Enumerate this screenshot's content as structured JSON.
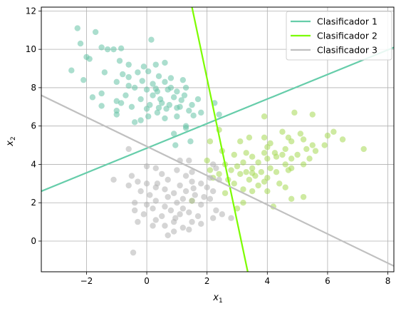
{
  "chart_data": {
    "type": "scatter",
    "xlabel": "x",
    "xlabel_sub": "1",
    "ylabel": "x",
    "ylabel_sub": "2",
    "xlim": [
      -3.5,
      8.2
    ],
    "ylim": [
      -1.6,
      12.2
    ],
    "grid": true,
    "legend_position": "top-right",
    "x_ticks": [
      -2,
      0,
      2,
      4,
      6,
      8
    ],
    "y_ticks": [
      0,
      2,
      4,
      6,
      8,
      10,
      12
    ],
    "x_tick_labels": [
      "−2",
      "0",
      "2",
      "4",
      "6",
      "8"
    ],
    "y_tick_labels": [
      "0",
      "2",
      "4",
      "6",
      "8",
      "10",
      "12"
    ],
    "colors": {
      "cluster_1": "#66c2a5",
      "cluster_2": "#a6d854",
      "cluster_3": "#b3b3b3",
      "line_1": "#66cdaa",
      "line_2": "#7cfc00",
      "line_3": "#c0c0c0"
    },
    "lines": [
      {
        "name": "Clasificador 1",
        "color": "#66cdaa",
        "points": [
          [
            -3.5,
            2.6
          ],
          [
            8.2,
            10.1
          ]
        ]
      },
      {
        "name": "Clasificador 2",
        "color": "#7cfc00",
        "points": [
          [
            1.5,
            12.2
          ],
          [
            3.35,
            -1.6
          ]
        ]
      },
      {
        "name": "Clasificador 3",
        "color": "#c0c0c0",
        "points": [
          [
            -3.5,
            7.6
          ],
          [
            8.2,
            -1.3
          ]
        ]
      }
    ],
    "series": [
      {
        "color": "#66c2a5",
        "points": [
          [
            -2.3,
            11.1
          ],
          [
            -1.7,
            10.9
          ],
          [
            0.15,
            10.5
          ],
          [
            -2.2,
            10.3
          ],
          [
            -1.3,
            10.0
          ],
          [
            -1.1,
            10.0
          ],
          [
            -0.85,
            10.05
          ],
          [
            -1.5,
            10.1
          ],
          [
            -2.0,
            9.6
          ],
          [
            -1.9,
            9.5
          ],
          [
            -0.9,
            9.4
          ],
          [
            -0.6,
            9.2
          ],
          [
            -0.1,
            9.1
          ],
          [
            0.3,
            9.2
          ],
          [
            0.6,
            9.3
          ],
          [
            -2.5,
            8.9
          ],
          [
            -1.4,
            8.8
          ],
          [
            -0.8,
            8.7
          ],
          [
            -0.3,
            8.8
          ],
          [
            0.05,
            8.85
          ],
          [
            0.4,
            8.6
          ],
          [
            0.8,
            8.5
          ],
          [
            -2.1,
            8.4
          ],
          [
            -1.0,
            8.3
          ],
          [
            -0.6,
            8.1
          ],
          [
            0.2,
            8.2
          ],
          [
            0.6,
            8.3
          ],
          [
            1.2,
            8.4
          ],
          [
            -0.4,
            8.0
          ],
          [
            0.0,
            7.9
          ],
          [
            0.35,
            7.8
          ],
          [
            0.7,
            7.9
          ],
          [
            1.0,
            7.8
          ],
          [
            1.3,
            8.0
          ],
          [
            -1.8,
            7.5
          ],
          [
            -1.5,
            7.7
          ],
          [
            -0.7,
            7.6
          ],
          [
            -0.2,
            7.4
          ],
          [
            0.45,
            7.4
          ],
          [
            0.9,
            7.5
          ],
          [
            1.25,
            7.6
          ],
          [
            1.7,
            7.4
          ],
          [
            -1.0,
            7.3
          ],
          [
            -0.5,
            7.0
          ],
          [
            0.1,
            7.1
          ],
          [
            0.5,
            7.2
          ],
          [
            0.75,
            7.1
          ],
          [
            1.1,
            7.0
          ],
          [
            1.5,
            7.1
          ],
          [
            -1.5,
            7.05
          ],
          [
            -0.85,
            7.2
          ],
          [
            0.0,
            6.9
          ],
          [
            0.35,
            6.7
          ],
          [
            0.65,
            6.9
          ],
          [
            1.4,
            6.8
          ],
          [
            1.8,
            6.7
          ],
          [
            -1.0,
            6.6
          ],
          [
            -0.2,
            6.3
          ],
          [
            0.6,
            6.4
          ],
          [
            1.0,
            6.5
          ],
          [
            0.05,
            6.5
          ],
          [
            1.3,
            6.0
          ],
          [
            0.9,
            5.6
          ],
          [
            1.3,
            5.9
          ],
          [
            0.95,
            5.0
          ],
          [
            1.45,
            5.2
          ],
          [
            2.25,
            7.2
          ],
          [
            2.4,
            6.6
          ],
          [
            -1.0,
            6.8
          ],
          [
            -0.4,
            6.2
          ],
          [
            0.3,
            7.95
          ],
          [
            0.8,
            8.0
          ],
          [
            1.15,
            7.35
          ],
          [
            0.4,
            6.95
          ],
          [
            -0.6,
            8.55
          ],
          [
            0.2,
            7.6
          ],
          [
            1.55,
            6.55
          ],
          [
            -0.15,
            8.35
          ],
          [
            1.0,
            6.95
          ]
        ]
      },
      {
        "color": "#a6d854",
        "points": [
          [
            4.9,
            6.7
          ],
          [
            5.5,
            6.6
          ],
          [
            3.9,
            6.5
          ],
          [
            6.2,
            5.7
          ],
          [
            2.4,
            5.8
          ],
          [
            4.5,
            5.7
          ],
          [
            5.1,
            5.6
          ],
          [
            6.0,
            5.5
          ],
          [
            3.4,
            5.4
          ],
          [
            3.9,
            5.4
          ],
          [
            4.7,
            5.4
          ],
          [
            5.2,
            5.3
          ],
          [
            6.5,
            5.3
          ],
          [
            2.1,
            5.2
          ],
          [
            3.1,
            5.2
          ],
          [
            4.1,
            5.1
          ],
          [
            4.8,
            5.2
          ],
          [
            5.5,
            5.0
          ],
          [
            5.9,
            5.0
          ],
          [
            4.0,
            4.9
          ],
          [
            4.6,
            4.8
          ],
          [
            5.3,
            4.8
          ],
          [
            5.6,
            4.7
          ],
          [
            7.2,
            4.8
          ],
          [
            2.5,
            4.7
          ],
          [
            3.3,
            4.6
          ],
          [
            3.9,
            4.6
          ],
          [
            4.5,
            4.5
          ],
          [
            5.0,
            4.5
          ],
          [
            2.9,
            4.5
          ],
          [
            3.5,
            4.4
          ],
          [
            4.3,
            4.4
          ],
          [
            4.8,
            4.3
          ],
          [
            5.4,
            4.3
          ],
          [
            4.0,
            4.3
          ],
          [
            2.0,
            4.2
          ],
          [
            3.2,
            4.1
          ],
          [
            3.7,
            4.1
          ],
          [
            4.6,
            4.0
          ],
          [
            5.2,
            4.0
          ],
          [
            2.6,
            4.0
          ],
          [
            3.0,
            3.9
          ],
          [
            3.5,
            3.8
          ],
          [
            4.1,
            3.8
          ],
          [
            4.8,
            3.8
          ],
          [
            2.1,
            3.7
          ],
          [
            2.8,
            3.7
          ],
          [
            3.3,
            3.6
          ],
          [
            3.8,
            3.6
          ],
          [
            4.3,
            3.6
          ],
          [
            4.7,
            3.7
          ],
          [
            2.4,
            3.5
          ],
          [
            3.1,
            3.5
          ],
          [
            3.6,
            3.4
          ],
          [
            4.0,
            3.3
          ],
          [
            2.2,
            3.3
          ],
          [
            2.7,
            3.2
          ],
          [
            3.4,
            3.2
          ],
          [
            3.9,
            3.1
          ],
          [
            4.4,
            3.0
          ],
          [
            2.9,
            3.0
          ],
          [
            3.7,
            2.9
          ],
          [
            4.6,
            2.8
          ],
          [
            3.2,
            2.7
          ],
          [
            4.0,
            2.6
          ],
          [
            5.2,
            2.3
          ],
          [
            4.8,
            2.2
          ],
          [
            3.5,
            2.6
          ],
          [
            3.2,
            2.0
          ],
          [
            4.2,
            1.8
          ],
          [
            2.6,
            2.5
          ],
          [
            3.0,
            1.7
          ],
          [
            1.5,
            2.1
          ],
          [
            3.5,
            3.55
          ],
          [
            4.25,
            4.6
          ]
        ]
      },
      {
        "color": "#b3b3b3",
        "points": [
          [
            -0.6,
            4.8
          ],
          [
            1.1,
            4.2
          ],
          [
            1.4,
            4.2
          ],
          [
            2.2,
            4.0
          ],
          [
            0.0,
            3.9
          ],
          [
            0.3,
            3.8
          ],
          [
            1.0,
            3.7
          ],
          [
            1.5,
            3.6
          ],
          [
            2.3,
            3.8
          ],
          [
            -0.5,
            3.4
          ],
          [
            0.5,
            3.5
          ],
          [
            1.3,
            3.4
          ],
          [
            2.1,
            3.3
          ],
          [
            -1.1,
            3.2
          ],
          [
            -0.3,
            3.1
          ],
          [
            0.7,
            3.2
          ],
          [
            1.5,
            3.1
          ],
          [
            2.4,
            3.2
          ],
          [
            0.0,
            3.0
          ],
          [
            0.3,
            2.8
          ],
          [
            1.1,
            2.9
          ],
          [
            1.8,
            3.0
          ],
          [
            -0.6,
            2.9
          ],
          [
            0.6,
            2.7
          ],
          [
            1.3,
            2.6
          ],
          [
            2.0,
            2.8
          ],
          [
            -0.2,
            2.6
          ],
          [
            0.9,
            2.5
          ],
          [
            1.6,
            2.4
          ],
          [
            2.2,
            2.6
          ],
          [
            0.1,
            2.4
          ],
          [
            0.7,
            2.3
          ],
          [
            1.2,
            2.2
          ],
          [
            1.9,
            2.3
          ],
          [
            -0.4,
            2.0
          ],
          [
            0.3,
            2.1
          ],
          [
            1.0,
            2.0
          ],
          [
            1.5,
            2.1
          ],
          [
            2.1,
            2.2
          ],
          [
            0.0,
            1.9
          ],
          [
            0.6,
            1.8
          ],
          [
            1.2,
            1.7
          ],
          [
            1.8,
            1.9
          ],
          [
            -0.4,
            1.6
          ],
          [
            0.2,
            1.7
          ],
          [
            0.8,
            1.6
          ],
          [
            1.4,
            1.5
          ],
          [
            2.3,
            1.6
          ],
          [
            -0.1,
            1.4
          ],
          [
            0.5,
            1.3
          ],
          [
            1.1,
            1.4
          ],
          [
            1.7,
            1.3
          ],
          [
            0.3,
            1.1
          ],
          [
            0.9,
            1.0
          ],
          [
            1.5,
            1.0
          ],
          [
            2.2,
            1.2
          ],
          [
            -0.3,
            1.0
          ],
          [
            0.6,
            0.8
          ],
          [
            1.2,
            0.7
          ],
          [
            1.8,
            0.9
          ],
          [
            0.2,
            0.8
          ],
          [
            0.9,
            0.5
          ],
          [
            1.4,
            0.6
          ],
          [
            0.7,
            0.3
          ],
          [
            -0.45,
            -0.6
          ],
          [
            2.8,
            1.2
          ],
          [
            2.5,
            1.4
          ],
          [
            0.35,
            3.0
          ],
          [
            1.55,
            2.75
          ],
          [
            0.95,
            1.2
          ]
        ]
      }
    ]
  }
}
